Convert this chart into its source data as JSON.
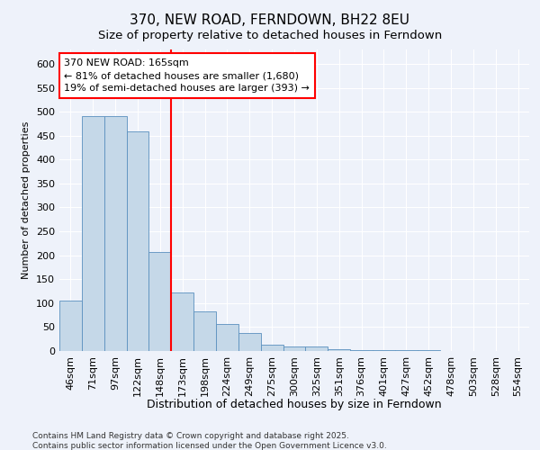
{
  "title": "370, NEW ROAD, FERNDOWN, BH22 8EU",
  "subtitle": "Size of property relative to detached houses in Ferndown",
  "xlabel": "Distribution of detached houses by size in Ferndown",
  "ylabel": "Number of detached properties",
  "categories": [
    "46sqm",
    "71sqm",
    "97sqm",
    "122sqm",
    "148sqm",
    "173sqm",
    "198sqm",
    "224sqm",
    "249sqm",
    "275sqm",
    "300sqm",
    "325sqm",
    "351sqm",
    "376sqm",
    "401sqm",
    "427sqm",
    "452sqm",
    "478sqm",
    "503sqm",
    "528sqm",
    "554sqm"
  ],
  "values": [
    105,
    490,
    490,
    458,
    207,
    122,
    82,
    57,
    38,
    13,
    10,
    10,
    3,
    2,
    1,
    1,
    1,
    0,
    0,
    0,
    0
  ],
  "bar_color": "#c5d8e8",
  "bar_edge_color": "#5a90be",
  "vline_index": 4,
  "vline_color": "red",
  "annotation_text": "370 NEW ROAD: 165sqm\n← 81% of detached houses are smaller (1,680)\n19% of semi-detached houses are larger (393) →",
  "ylim": [
    0,
    630
  ],
  "yticks": [
    0,
    50,
    100,
    150,
    200,
    250,
    300,
    350,
    400,
    450,
    500,
    550,
    600
  ],
  "background_color": "#eef2fa",
  "grid_color": "#ffffff",
  "footer_text": "Contains HM Land Registry data © Crown copyright and database right 2025.\nContains public sector information licensed under the Open Government Licence v3.0.",
  "title_fontsize": 11,
  "subtitle_fontsize": 9.5,
  "xlabel_fontsize": 9,
  "ylabel_fontsize": 8,
  "tick_fontsize": 8,
  "annotation_fontsize": 8,
  "footer_fontsize": 6.5
}
